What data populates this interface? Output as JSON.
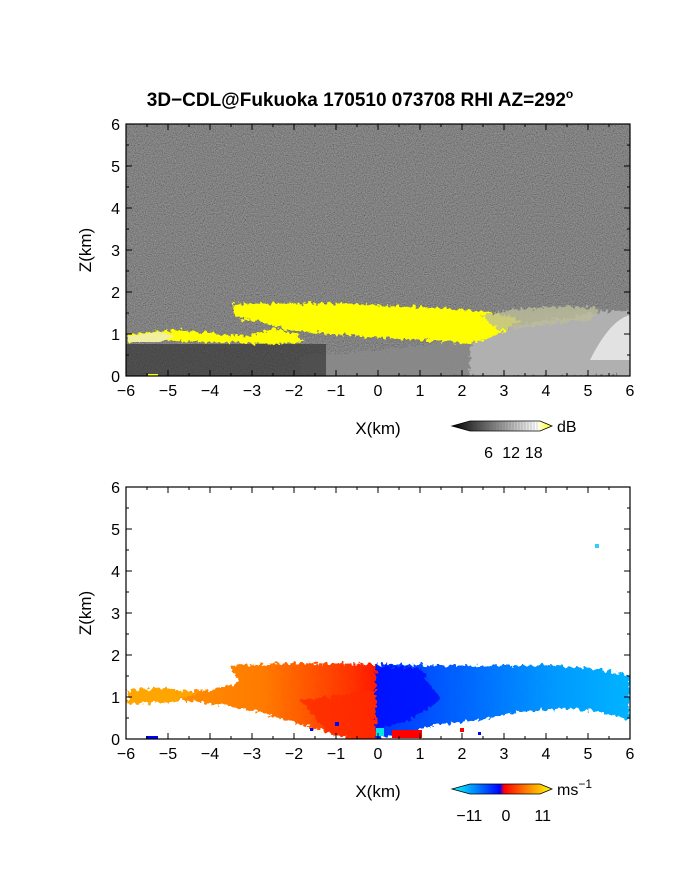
{
  "figure": {
    "title": "3D−CDL@Fukuoka 170510 073708 RHI AZ=292",
    "title_degree_sign": "o"
  },
  "chart_data": [
    {
      "type": "heatmap",
      "name": "reflectivity",
      "xlabel": "X(km)",
      "ylabel": "Z(km)",
      "xlim": [
        -6,
        6
      ],
      "ylim": [
        0,
        6
      ],
      "xticks": [
        "−6",
        "−5",
        "−4",
        "−3",
        "−2",
        "−1",
        "0",
        "1",
        "2",
        "3",
        "4",
        "5",
        "6"
      ],
      "yticks": [
        "0",
        "1",
        "2",
        "3",
        "4",
        "5",
        "6"
      ],
      "background": "noise (dark gray)",
      "colorbar": {
        "unit": "dB",
        "ticks": [
          "6",
          "12",
          "18"
        ],
        "range": [
          0,
          21
        ],
        "colors": [
          "#000000",
          "#ffffff",
          "#ffff00"
        ]
      },
      "features": [
        {
          "label": "strong echo layer (yellow, >18 dB)",
          "x": [
            -3.5,
            3.0
          ],
          "z": [
            0.9,
            1.7
          ]
        },
        {
          "label": "low thin echo (yellow)",
          "x": [
            -6.0,
            -1.5
          ],
          "z": [
            0.75,
            1.0
          ]
        },
        {
          "label": "gray cloud band",
          "x": [
            0.0,
            6.0
          ],
          "z": [
            0.0,
            1.5
          ]
        }
      ]
    },
    {
      "type": "heatmap",
      "name": "doppler velocity",
      "xlabel": "X(km)",
      "ylabel": "Z(km)",
      "xlim": [
        -6,
        6
      ],
      "ylim": [
        0,
        6
      ],
      "xticks": [
        "−6",
        "−5",
        "−4",
        "−3",
        "−2",
        "−1",
        "0",
        "1",
        "2",
        "3",
        "4",
        "5",
        "6"
      ],
      "yticks": [
        "0",
        "1",
        "2",
        "3",
        "4",
        "5",
        "6"
      ],
      "colorbar": {
        "unit": "ms",
        "unit_exp": "−1",
        "ticks": [
          "−11",
          "0",
          "11"
        ],
        "range": [
          -15,
          15
        ],
        "colors": [
          "#00ffff",
          "#0000ff",
          "#ff0000",
          "#ffff00"
        ]
      },
      "features": [
        {
          "label": "positive velocities (orange/yellow)",
          "x": [
            -6.0,
            0.0
          ],
          "z": [
            0.0,
            1.7
          ]
        },
        {
          "label": "negative velocities (blue/cyan)",
          "x": [
            0.0,
            6.0
          ],
          "z": [
            0.3,
            1.7
          ]
        }
      ]
    }
  ]
}
